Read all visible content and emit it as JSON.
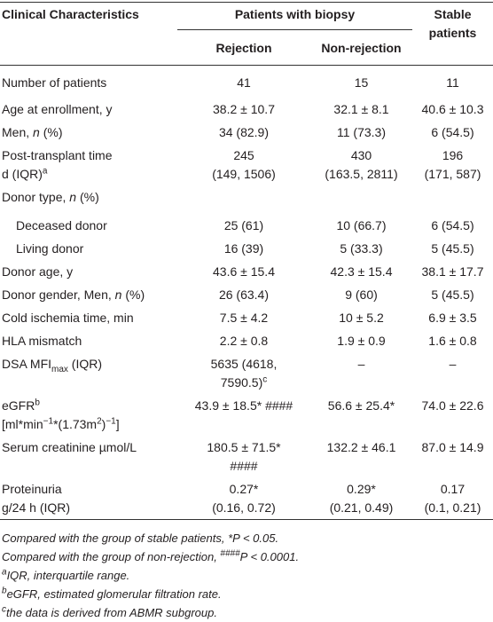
{
  "header": {
    "characteristics": "Clinical Characteristics",
    "group": "Patients with biopsy",
    "rejection": "Rejection",
    "non_rejection": "Non-rejection",
    "stable": "Stable patients"
  },
  "rows": [
    {
      "label": [
        "Number of patients"
      ],
      "values": [
        [
          "41"
        ],
        [
          "15"
        ],
        [
          "11"
        ]
      ]
    },
    {
      "label": [
        "Age at enrollment, y"
      ],
      "values": [
        [
          "38.2 ± 10.7"
        ],
        [
          "32.1 ± 8.1"
        ],
        [
          "40.6 ± 10.3"
        ]
      ]
    },
    {
      "label": [
        "Men, ",
        "n",
        " (%)"
      ],
      "values": [
        [
          "34 (82.9)"
        ],
        [
          "11 (73.3)"
        ],
        [
          "6 (54.5)"
        ]
      ]
    },
    {
      "label": [
        "Post-transplant time",
        "d (IQR)",
        "a"
      ],
      "values": [
        [
          "245",
          "(149, 1506)"
        ],
        [
          "430",
          "(163.5, 2811)"
        ],
        [
          "196",
          "(171, 587)"
        ]
      ]
    },
    {
      "label": [
        "Donor type, ",
        "n",
        " (%)"
      ]
    },
    {
      "label": [
        "Deceased donor"
      ],
      "values": [
        [
          "25 (61)"
        ],
        [
          "10 (66.7)"
        ],
        [
          "6 (54.5)"
        ]
      ]
    },
    {
      "label": [
        "Living donor"
      ],
      "values": [
        [
          "16 (39)"
        ],
        [
          "5 (33.3)"
        ],
        [
          "5 (45.5)"
        ]
      ]
    },
    {
      "label": [
        "Donor age, y"
      ],
      "values": [
        [
          "43.6 ± 15.4"
        ],
        [
          "42.3 ± 15.4"
        ],
        [
          "38.1 ± 17.7"
        ]
      ]
    },
    {
      "label": [
        "Donor gender, Men, ",
        "n",
        " (%)"
      ],
      "values": [
        [
          "26 (63.4)"
        ],
        [
          "9 (60)"
        ],
        [
          "5 (45.5)"
        ]
      ]
    },
    {
      "label": [
        "Cold ischemia time, min"
      ],
      "values": [
        [
          "7.5 ± 4.2"
        ],
        [
          "10 ± 5.2"
        ],
        [
          "6.9 ± 3.5"
        ]
      ]
    },
    {
      "label": [
        "HLA mismatch"
      ],
      "values": [
        [
          "2.2 ± 0.8"
        ],
        [
          "1.9 ± 0.9"
        ],
        [
          "1.6 ± 0.8"
        ]
      ]
    },
    {
      "label": [
        "DSA MFI",
        "max",
        " (IQR)"
      ],
      "values": [
        [
          "5635 (4618,",
          "7590.5)",
          "c"
        ],
        [
          "–"
        ],
        [
          "–"
        ]
      ]
    },
    {
      "label": [
        "eGFR",
        "b",
        "[ml*min",
        "−1",
        "*(1.73m",
        "2",
        ")",
        "−1",
        "]"
      ],
      "values": [
        [
          "43.9 ± 18.5* ####"
        ],
        [
          "56.6 ± 25.4*"
        ],
        [
          "74.0 ± 22.6"
        ]
      ]
    },
    {
      "label": [
        "Serum creatinine µmol/L"
      ],
      "values": [
        [
          "180.5 ± 71.5*",
          "####"
        ],
        [
          "132.2 ± 46.1"
        ],
        [
          "87.0 ± 14.9"
        ]
      ]
    },
    {
      "label": [
        "Proteinuria",
        "g/24 h (IQR)"
      ],
      "values": [
        [
          "0.27*",
          "(0.16, 0.72)"
        ],
        [
          "0.29*",
          "(0.21, 0.49)"
        ],
        [
          "0.17",
          "(0.1, 0.21)"
        ]
      ]
    }
  ],
  "footnotes": [
    [
      "Compared with the group of stable patients, *",
      "P",
      " < 0.05."
    ],
    [
      "Compared with the group of non-rejection, ",
      "####",
      "P",
      " < 0.0001."
    ],
    [
      "a",
      "IQR, interquartile range."
    ],
    [
      "b",
      "eGFR, estimated glomerular filtration rate."
    ],
    [
      "c",
      "the data is derived from ABMR subgroup."
    ]
  ]
}
